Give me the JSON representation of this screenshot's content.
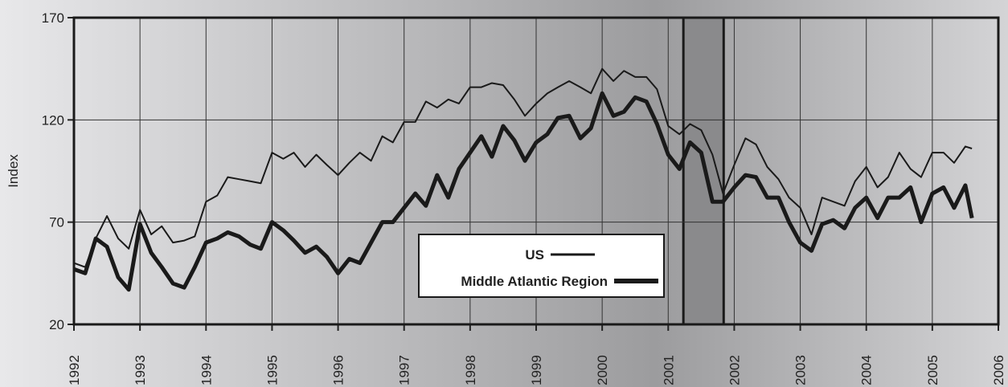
{
  "chart_data": {
    "type": "line",
    "y_label": "Index",
    "x": [
      1992,
      1992.17,
      1992.33,
      1992.5,
      1992.67,
      1992.83,
      1993,
      1993.17,
      1993.33,
      1993.5,
      1993.67,
      1993.83,
      1994,
      1994.17,
      1994.33,
      1994.5,
      1994.67,
      1994.83,
      1995,
      1995.17,
      1995.33,
      1995.5,
      1995.67,
      1995.83,
      1996,
      1996.17,
      1996.33,
      1996.5,
      1996.67,
      1996.83,
      1997,
      1997.17,
      1997.33,
      1997.5,
      1997.67,
      1997.83,
      1998,
      1998.17,
      1998.33,
      1998.5,
      1998.67,
      1998.83,
      1999,
      1999.17,
      1999.33,
      1999.5,
      1999.67,
      1999.83,
      2000,
      2000.17,
      2000.33,
      2000.5,
      2000.67,
      2000.83,
      2001,
      2001.17,
      2001.33,
      2001.5,
      2001.67,
      2001.83,
      2002,
      2002.17,
      2002.33,
      2002.5,
      2002.67,
      2002.83,
      2003,
      2003.17,
      2003.33,
      2003.5,
      2003.67,
      2003.83,
      2004,
      2004.17,
      2004.33,
      2004.5,
      2004.67,
      2004.83,
      2005,
      2005.17,
      2005.33,
      2005.5,
      2005.6
    ],
    "series": [
      {
        "name": "US",
        "color": "#1a1a1a",
        "width": 2,
        "values": [
          50,
          48,
          62,
          73,
          62,
          57,
          76,
          64,
          68,
          60,
          61,
          63,
          80,
          83,
          92,
          91,
          90,
          89,
          104,
          101,
          104,
          97,
          103,
          98,
          93,
          99,
          104,
          100,
          112,
          109,
          119,
          119,
          129,
          126,
          130,
          128,
          136,
          136,
          138,
          137,
          130,
          122,
          128,
          133,
          136,
          139,
          136,
          133,
          145,
          139,
          144,
          141,
          141,
          135,
          117,
          113,
          118,
          115,
          103,
          84,
          98,
          111,
          108,
          97,
          91,
          82,
          77,
          64,
          82,
          80,
          78,
          90,
          97,
          87,
          92,
          104,
          96,
          92,
          104,
          104,
          99,
          107,
          106
        ]
      },
      {
        "name": "Middle Atlantic Region",
        "color": "#1a1a1a",
        "width": 5,
        "values": [
          47,
          45,
          62,
          58,
          43,
          37,
          69,
          55,
          48,
          40,
          38,
          48,
          60,
          62,
          65,
          63,
          59,
          57,
          70,
          66,
          61,
          55,
          58,
          53,
          45,
          52,
          50,
          60,
          70,
          70,
          77,
          84,
          78,
          93,
          82,
          96,
          104,
          112,
          102,
          117,
          110,
          100,
          109,
          113,
          121,
          122,
          111,
          116,
          133,
          122,
          124,
          131,
          129,
          118,
          103,
          96,
          109,
          104,
          80,
          80,
          87,
          93,
          92,
          82,
          82,
          70,
          60,
          56,
          69,
          71,
          67,
          77,
          82,
          72,
          82,
          82,
          87,
          70,
          84,
          87,
          77,
          88,
          72
        ]
      }
    ],
    "xlim": [
      1992,
      2006
    ],
    "xticks": [
      1992,
      1993,
      1994,
      1995,
      1996,
      1997,
      1998,
      1999,
      2000,
      2001,
      2002,
      2003,
      2004,
      2005,
      2006
    ],
    "ylim": [
      20,
      170
    ],
    "yticks": [
      20,
      70,
      120,
      170
    ],
    "shaded_x": [
      2001.23,
      2001.84
    ],
    "grid": true,
    "legend": "bottom-center"
  }
}
